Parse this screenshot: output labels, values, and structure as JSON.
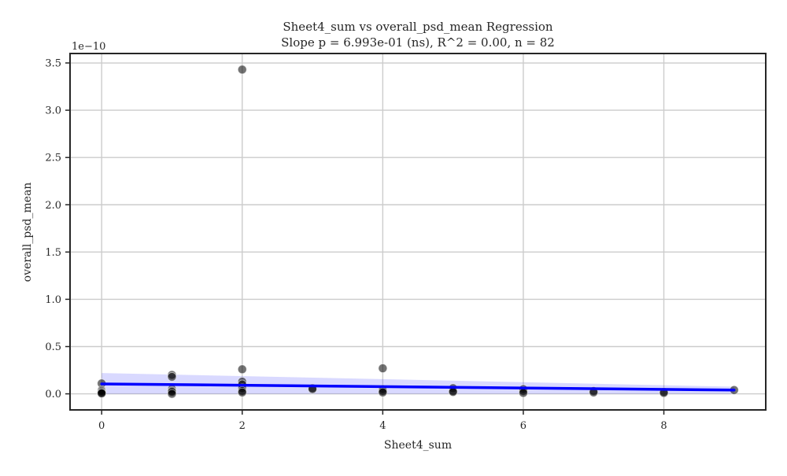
{
  "chart_data": {
    "type": "scatter",
    "title": "Sheet4_sum vs overall_psd_mean Regression",
    "subtitle": "Slope p = 6.993e-01 (ns), R^2 = 0.00, n = 82",
    "xlabel": "Sheet4_sum",
    "ylabel": "overall_psd_mean",
    "y_offset_label": "1e−10",
    "y_scale_multiplier": 1e-10,
    "xlim": [
      -0.45,
      9.45
    ],
    "ylim": [
      -0.17,
      3.6
    ],
    "x_ticks": [
      0,
      2,
      4,
      6,
      8
    ],
    "y_ticks": [
      0.0,
      0.5,
      1.0,
      1.5,
      2.0,
      2.5,
      3.0,
      3.5
    ],
    "x_tick_labels": [
      "0",
      "2",
      "4",
      "6",
      "8"
    ],
    "y_tick_labels": [
      "0.0",
      "0.5",
      "1.0",
      "1.5",
      "2.0",
      "2.5",
      "3.0",
      "3.5"
    ],
    "grid": true,
    "point_color": "#000000",
    "regression_color": "#0000ff",
    "points": [
      {
        "x": 0,
        "y": 0.11
      },
      {
        "x": 0,
        "y": 0.04
      },
      {
        "x": 0,
        "y": 0.03
      },
      {
        "x": 0,
        "y": 0.02
      },
      {
        "x": 0,
        "y": 0.01
      },
      {
        "x": 0,
        "y": 0.005
      },
      {
        "x": 1,
        "y": 0.2
      },
      {
        "x": 1,
        "y": 0.18
      },
      {
        "x": 1,
        "y": 0.05
      },
      {
        "x": 1,
        "y": 0.03
      },
      {
        "x": 1,
        "y": 0.02
      },
      {
        "x": 1,
        "y": 0.0
      },
      {
        "x": 2,
        "y": 3.43
      },
      {
        "x": 2,
        "y": 0.26
      },
      {
        "x": 2,
        "y": 0.13
      },
      {
        "x": 2,
        "y": 0.1
      },
      {
        "x": 2,
        "y": 0.06
      },
      {
        "x": 2,
        "y": 0.03
      },
      {
        "x": 2,
        "y": 0.015
      },
      {
        "x": 3,
        "y": 0.06
      },
      {
        "x": 3,
        "y": 0.05
      },
      {
        "x": 4,
        "y": 0.27
      },
      {
        "x": 4,
        "y": 0.05
      },
      {
        "x": 4,
        "y": 0.03
      },
      {
        "x": 4,
        "y": 0.015
      },
      {
        "x": 5,
        "y": 0.06
      },
      {
        "x": 5,
        "y": 0.03
      },
      {
        "x": 5,
        "y": 0.02
      },
      {
        "x": 6,
        "y": 0.05
      },
      {
        "x": 6,
        "y": 0.03
      },
      {
        "x": 6,
        "y": 0.01
      },
      {
        "x": 7,
        "y": 0.03
      },
      {
        "x": 7,
        "y": 0.015
      },
      {
        "x": 8,
        "y": 0.02
      },
      {
        "x": 8,
        "y": 0.01
      },
      {
        "x": 9,
        "y": 0.04
      }
    ],
    "regression_line": {
      "x": [
        0,
        9
      ],
      "y": [
        0.105,
        0.04
      ]
    },
    "confidence_band": {
      "x": [
        0,
        9
      ],
      "lower": [
        0.0,
        0.0
      ],
      "upper": [
        0.22,
        0.075
      ]
    }
  }
}
